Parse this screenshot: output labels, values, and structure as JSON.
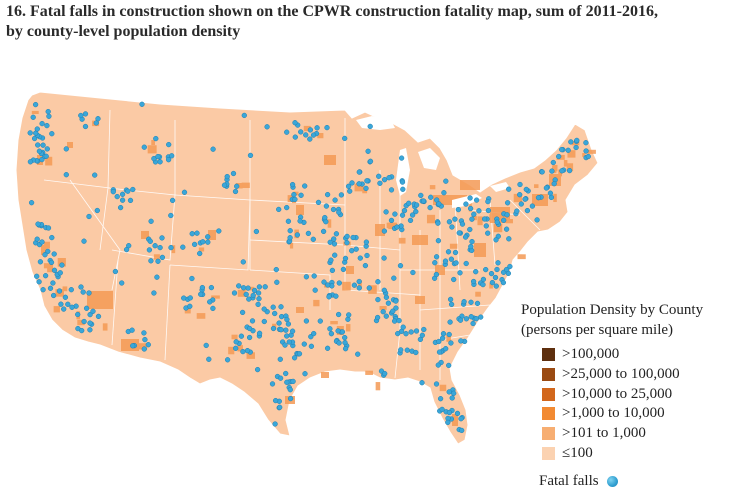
{
  "title": {
    "line1": "16. Fatal falls in construction shown on the CPWR construction fatality map, sum of 2011-2016,",
    "line2": "by county-level population density"
  },
  "legend": {
    "title_line1": "Population Density by County",
    "title_line2": "(persons per square mile)",
    "items": [
      {
        "label": ">100,000",
        "color": "#5e2f0e"
      },
      {
        "label": ">25,000 to 100,000",
        "color": "#9a4a12"
      },
      {
        "label": ">10,000 to 25,000",
        "color": "#d2671c"
      },
      {
        "label": ">1,000 to 10,000",
        "color": "#f28a32"
      },
      {
        "label": ">101 to 1,000",
        "color": "#f7ae72"
      },
      {
        "label": "≤100",
        "color": "#fbd2b1"
      }
    ],
    "falls_label": "Fatal falls",
    "falls_color": "#3aa6d8"
  },
  "map": {
    "land_color": "#fbcaa5",
    "dense_color": "#f49a55",
    "water_color": "#ffffff",
    "dot_color": "#3aa6d8"
  }
}
